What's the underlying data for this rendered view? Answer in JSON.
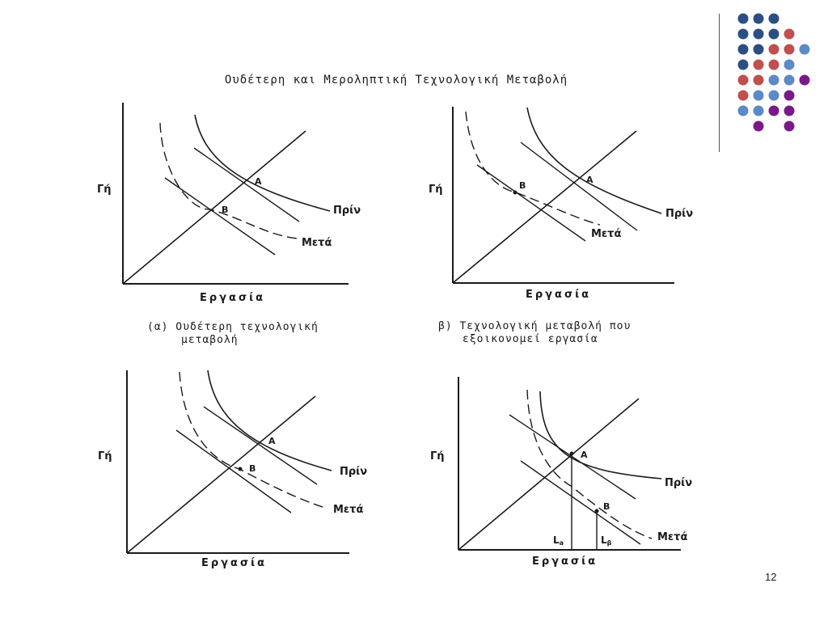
{
  "title": "Ουδέτερη και Μεροληπτική Τεχνολογική Μεταβολή",
  "axes": {
    "y": "Γή",
    "x": "Εργασία"
  },
  "points": {
    "a": "A",
    "b": "B"
  },
  "curves": {
    "before": "Πρίν",
    "after": "Μετά"
  },
  "captions": {
    "a_line1": "(α) Ουδέτερη τεχνολογική",
    "a_line2": "μεταβολή",
    "b_line1": "β) Τεχνολογική μεταβολή που",
    "b_line2": "εξοικονομεί εργασία"
  },
  "labor_marks": {
    "la": "L",
    "la_sub": "a",
    "lb": "L",
    "lb_sub": "β"
  },
  "page_number": "12",
  "decoration": {
    "dot_colors": {
      "navy": "#2b4f82",
      "red": "#c0504d",
      "blue": "#5b8ac6",
      "purple": "#7a1a8a"
    },
    "dot_grid": [
      [
        "navy",
        "navy",
        "navy",
        "",
        "",
        ""
      ],
      [
        "navy",
        "navy",
        "navy",
        "red",
        "",
        ""
      ],
      [
        "navy",
        "navy",
        "red",
        "red",
        "blue",
        ""
      ],
      [
        "navy",
        "red",
        "red",
        "blue",
        "",
        ""
      ],
      [
        "red",
        "red",
        "blue",
        "blue",
        "purple",
        ""
      ],
      [
        "red",
        "blue",
        "blue",
        "purple",
        "",
        ""
      ],
      [
        "blue",
        "blue",
        "purple",
        "purple",
        "",
        ""
      ],
      [
        "",
        "purple",
        "",
        "purple",
        "",
        ""
      ]
    ]
  }
}
